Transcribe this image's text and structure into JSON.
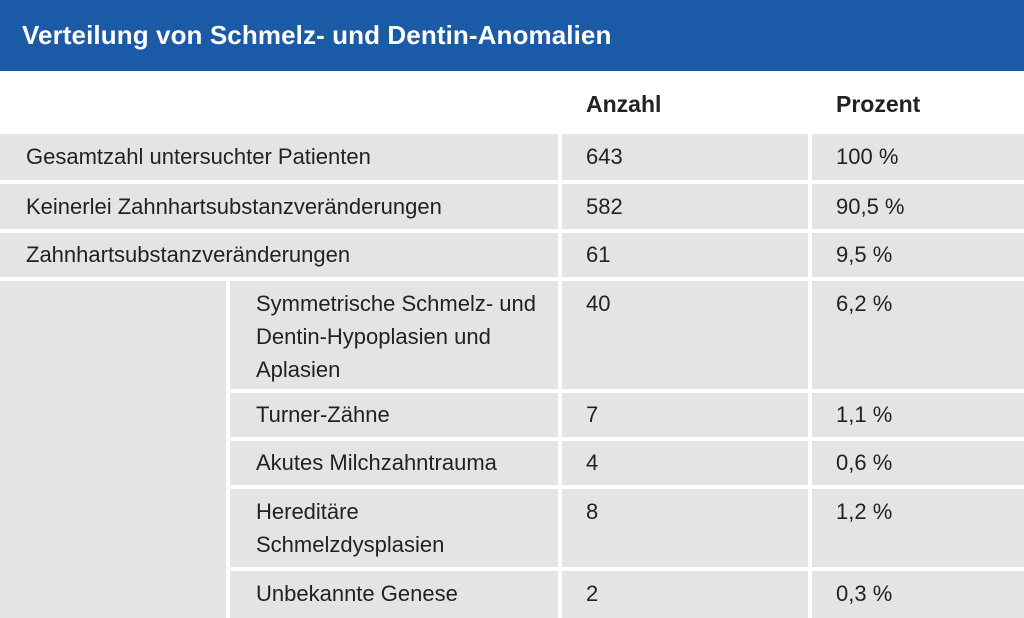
{
  "title": "Verteilung von Schmelz- und Dentin-Anomalien",
  "header": {
    "count": "Anzahl",
    "percent": "Prozent"
  },
  "rows": [
    {
      "label": "Gesamtzahl untersuchter Patienten",
      "count": "643",
      "percent": "100 %"
    },
    {
      "label": "Keinerlei Zahnhartsubstanzveränderungen",
      "count": "582",
      "percent": "90,5 %"
    },
    {
      "label": "Zahnhartsubstanzveränderungen",
      "count": "61",
      "percent": "9,5 %"
    }
  ],
  "subrows": [
    {
      "line1": "Symmetrische Schmelz- und",
      "line2": "Dentin-Hypoplasien und",
      "line3": "Aplasien",
      "count": "40",
      "percent": "6,2 %"
    },
    {
      "line1": "Turner-Zähne",
      "count": "7",
      "percent": "1,1 %"
    },
    {
      "line1": "Akutes Milchzahntrauma",
      "count": "4",
      "percent": "0,6 %"
    },
    {
      "line1": "Hereditäre",
      "line2": "Schmelzdysplasien",
      "count": "8",
      "percent": "1,2 %"
    },
    {
      "line1": "Unbekannte Genese",
      "count": "2",
      "percent": "0,3 %"
    }
  ]
}
